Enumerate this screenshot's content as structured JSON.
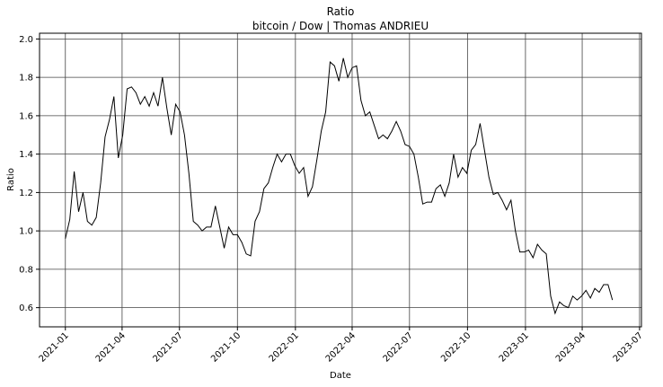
{
  "chart_data": {
    "type": "line",
    "title": "Ratio",
    "subtitle": "bitcoin / Dow | Thomas ANDRIEU",
    "x_label": "Date",
    "y_label": "Ratio",
    "color": "#000000",
    "grid": true,
    "xlim": [
      -41,
      914
    ],
    "ylim": [
      0.5,
      2.03
    ],
    "xticks": [
      {
        "value": 0,
        "label": "2021-01"
      },
      {
        "value": 90,
        "label": "2021-04"
      },
      {
        "value": 181,
        "label": "2021-07"
      },
      {
        "value": 273,
        "label": "2021-10"
      },
      {
        "value": 365,
        "label": "2022-01"
      },
      {
        "value": 455,
        "label": "2022-04"
      },
      {
        "value": 546,
        "label": "2022-07"
      },
      {
        "value": 638,
        "label": "2022-10"
      },
      {
        "value": 730,
        "label": "2023-01"
      },
      {
        "value": 820,
        "label": "2023-04"
      },
      {
        "value": 911,
        "label": "2023-07"
      }
    ],
    "yticks": [
      0.6,
      0.8,
      {
        "value": 1.0,
        "label": "1.0"
      },
      1.2,
      1.4,
      1.6,
      1.8,
      {
        "value": 2.0,
        "label": "2.0"
      }
    ],
    "x": [
      0,
      7,
      14,
      21,
      28,
      35,
      42,
      49,
      56,
      63,
      70,
      77,
      84,
      91,
      98,
      105,
      112,
      119,
      126,
      133,
      140,
      147,
      154,
      161,
      168,
      175,
      182,
      189,
      196,
      203,
      210,
      217,
      224,
      231,
      238,
      245,
      252,
      259,
      266,
      273,
      280,
      287,
      294,
      301,
      308,
      315,
      322,
      329,
      336,
      343,
      350,
      357,
      364,
      371,
      378,
      385,
      392,
      399,
      406,
      413,
      420,
      427,
      434,
      441,
      448,
      455,
      462,
      469,
      476,
      483,
      490,
      497,
      504,
      511,
      518,
      525,
      532,
      539,
      546,
      553,
      560,
      567,
      574,
      581,
      588,
      595,
      602,
      609,
      616,
      623,
      630,
      637,
      644,
      651,
      658,
      665,
      672,
      679,
      686,
      693,
      700,
      707,
      714,
      721,
      728,
      735,
      742,
      749,
      756,
      763,
      770,
      777,
      784,
      791,
      798,
      805,
      812,
      819,
      826,
      833,
      840,
      847,
      854,
      861,
      868
    ],
    "values": [
      0.96,
      1.06,
      1.31,
      1.1,
      1.2,
      1.05,
      1.03,
      1.07,
      1.25,
      1.49,
      1.58,
      1.7,
      1.38,
      1.5,
      1.74,
      1.75,
      1.72,
      1.66,
      1.7,
      1.65,
      1.72,
      1.65,
      1.8,
      1.64,
      1.5,
      1.66,
      1.62,
      1.5,
      1.3,
      1.05,
      1.03,
      1.0,
      1.02,
      1.02,
      1.13,
      1.02,
      0.91,
      1.02,
      0.98,
      0.98,
      0.94,
      0.88,
      0.87,
      1.05,
      1.1,
      1.22,
      1.25,
      1.33,
      1.4,
      1.36,
      1.4,
      1.4,
      1.34,
      1.3,
      1.33,
      1.18,
      1.23,
      1.37,
      1.52,
      1.62,
      1.88,
      1.86,
      1.78,
      1.9,
      1.8,
      1.85,
      1.86,
      1.68,
      1.6,
      1.62,
      1.55,
      1.48,
      1.5,
      1.48,
      1.52,
      1.57,
      1.52,
      1.45,
      1.44,
      1.4,
      1.28,
      1.14,
      1.15,
      1.15,
      1.22,
      1.24,
      1.18,
      1.25,
      1.4,
      1.28,
      1.33,
      1.3,
      1.42,
      1.45,
      1.56,
      1.42,
      1.28,
      1.19,
      1.2,
      1.16,
      1.11,
      1.16,
      1.0,
      0.89,
      0.89,
      0.9,
      0.86,
      0.93,
      0.9,
      0.88,
      0.66,
      0.57,
      0.63,
      0.61,
      0.6,
      0.66,
      0.64,
      0.66,
      0.69,
      0.65,
      0.7,
      0.68,
      0.72,
      0.72,
      0.64
    ]
  }
}
